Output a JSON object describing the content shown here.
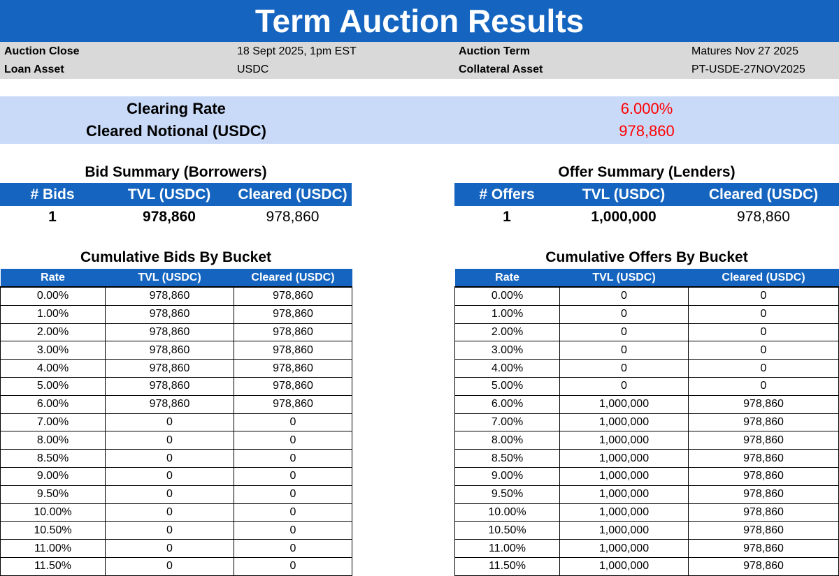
{
  "title": "Term Auction Results",
  "meta": {
    "auction_close_label": "Auction Close",
    "auction_close_value": "18 Sept 2025, 1pm EST",
    "auction_term_label": "Auction Term",
    "auction_term_value": "Matures Nov 27 2025",
    "loan_asset_label": "Loan Asset",
    "loan_asset_value": "USDC",
    "collateral_asset_label": "Collateral Asset",
    "collateral_asset_value": "PT-USDE-27NOV2025"
  },
  "clearing": {
    "rate_label": "Clearing Rate",
    "rate_value": "6.000%",
    "notional_label": "Cleared Notional (USDC)",
    "notional_value": "978,860"
  },
  "bid_summary": {
    "title": "Bid Summary (Borrowers)",
    "headers": [
      "# Bids",
      "TVL (USDC)",
      "Cleared (USDC)"
    ],
    "values": [
      "1",
      "978,860",
      "978,860"
    ]
  },
  "offer_summary": {
    "title": "Offer Summary (Lenders)",
    "headers": [
      "# Offers",
      "TVL (USDC)",
      "Cleared (USDC)"
    ],
    "values": [
      "1",
      "1,000,000",
      "978,860"
    ]
  },
  "cumulative_bids": {
    "title": "Cumulative Bids By Bucket",
    "headers": [
      "Rate",
      "TVL (USDC)",
      "Cleared (USDC)"
    ],
    "rows": [
      [
        "0.00%",
        "978,860",
        "978,860"
      ],
      [
        "1.00%",
        "978,860",
        "978,860"
      ],
      [
        "2.00%",
        "978,860",
        "978,860"
      ],
      [
        "3.00%",
        "978,860",
        "978,860"
      ],
      [
        "4.00%",
        "978,860",
        "978,860"
      ],
      [
        "5.00%",
        "978,860",
        "978,860"
      ],
      [
        "6.00%",
        "978,860",
        "978,860"
      ],
      [
        "7.00%",
        "0",
        "0"
      ],
      [
        "8.00%",
        "0",
        "0"
      ],
      [
        "8.50%",
        "0",
        "0"
      ],
      [
        "9.00%",
        "0",
        "0"
      ],
      [
        "9.50%",
        "0",
        "0"
      ],
      [
        "10.00%",
        "0",
        "0"
      ],
      [
        "10.50%",
        "0",
        "0"
      ],
      [
        "11.00%",
        "0",
        "0"
      ],
      [
        "11.50%",
        "0",
        "0"
      ]
    ]
  },
  "cumulative_offers": {
    "title": "Cumulative Offers By Bucket",
    "headers": [
      "Rate",
      "TVL (USDC)",
      "Cleared (USDC)"
    ],
    "rows": [
      [
        "0.00%",
        "0",
        "0"
      ],
      [
        "1.00%",
        "0",
        "0"
      ],
      [
        "2.00%",
        "0",
        "0"
      ],
      [
        "3.00%",
        "0",
        "0"
      ],
      [
        "4.00%",
        "0",
        "0"
      ],
      [
        "5.00%",
        "0",
        "0"
      ],
      [
        "6.00%",
        "1,000,000",
        "978,860"
      ],
      [
        "7.00%",
        "1,000,000",
        "978,860"
      ],
      [
        "8.00%",
        "1,000,000",
        "978,860"
      ],
      [
        "8.50%",
        "1,000,000",
        "978,860"
      ],
      [
        "9.00%",
        "1,000,000",
        "978,860"
      ],
      [
        "9.50%",
        "1,000,000",
        "978,860"
      ],
      [
        "10.00%",
        "1,000,000",
        "978,860"
      ],
      [
        "10.50%",
        "1,000,000",
        "978,860"
      ],
      [
        "11.00%",
        "1,000,000",
        "978,860"
      ],
      [
        "11.50%",
        "1,000,000",
        "978,860"
      ]
    ]
  }
}
